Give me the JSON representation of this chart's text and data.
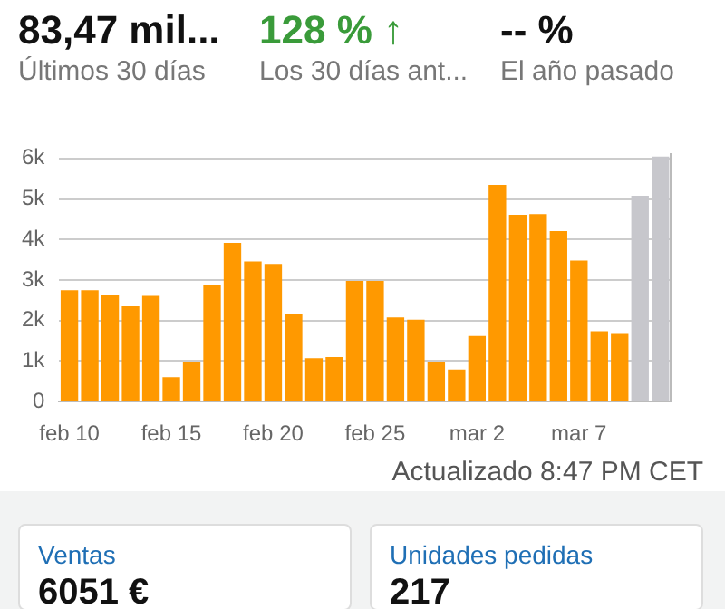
{
  "chart_data": {
    "type": "bar",
    "categories": [
      "feb 10",
      null,
      null,
      null,
      null,
      "feb 15",
      null,
      null,
      null,
      null,
      "feb 20",
      null,
      null,
      null,
      null,
      "feb 25",
      null,
      null,
      null,
      null,
      "mar 2",
      null,
      null,
      null,
      null,
      "mar 7",
      null,
      null,
      null,
      null
    ],
    "values": [
      2750,
      2750,
      2640,
      2350,
      2610,
      600,
      970,
      2880,
      3920,
      3460,
      3400,
      2160,
      1070,
      1100,
      2980,
      2980,
      2080,
      2020,
      970,
      790,
      1620,
      5350,
      4610,
      4630,
      4210,
      3480,
      1740,
      1670,
      5080,
      6050
    ],
    "colors": [
      "#ff9900",
      "#ff9900",
      "#ff9900",
      "#ff9900",
      "#ff9900",
      "#ff9900",
      "#ff9900",
      "#ff9900",
      "#ff9900",
      "#ff9900",
      "#ff9900",
      "#ff9900",
      "#ff9900",
      "#ff9900",
      "#ff9900",
      "#ff9900",
      "#ff9900",
      "#ff9900",
      "#ff9900",
      "#ff9900",
      "#ff9900",
      "#ff9900",
      "#ff9900",
      "#ff9900",
      "#ff9900",
      "#ff9900",
      "#ff9900",
      "#ff9900",
      "#c7c7cc",
      "#c7c7cc"
    ],
    "ylim": [
      0,
      6100
    ],
    "yticks": [
      0,
      {
        "value": 1000,
        "label": "1k"
      },
      {
        "value": 2000,
        "label": "2k"
      },
      {
        "value": 3000,
        "label": "3k"
      },
      {
        "value": 4000,
        "label": "4k"
      },
      {
        "value": 5000,
        "label": "5k"
      },
      {
        "value": 6000,
        "label": "6k"
      }
    ],
    "grid": "y",
    "legend": false,
    "annotations": [
      "83,47 mil...",
      "Últimos 30 días",
      "128 % ↑",
      "Los 30 días ant...",
      "-- %",
      "El año pasado",
      "Actualizado 8:47 PM CET",
      "Ventas",
      "6051 €",
      "Unidades pedidas",
      "217"
    ]
  }
}
